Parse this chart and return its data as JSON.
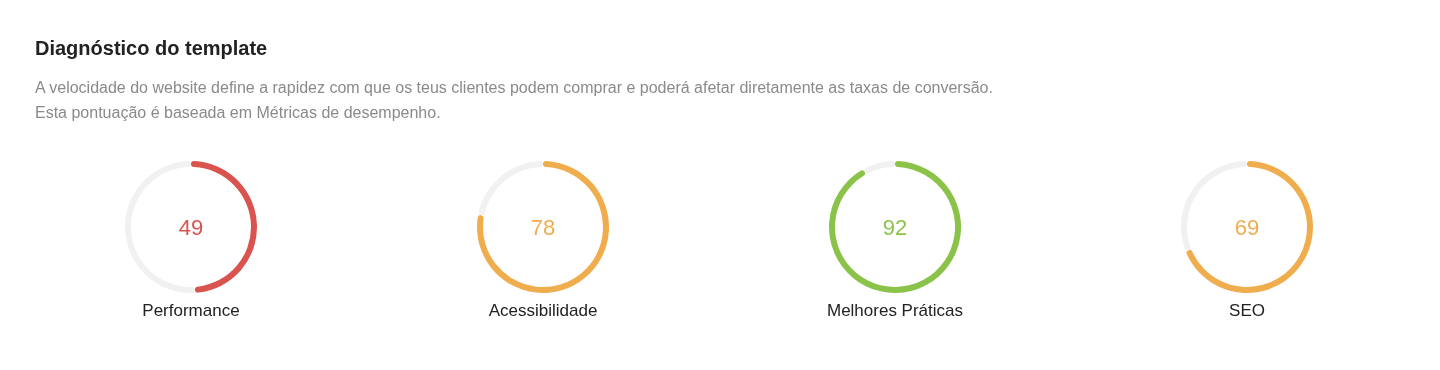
{
  "chart_data": [
    {
      "type": "other",
      "title": "Diagnóstico do template",
      "subtitle": "A velocidade do website define a rapidez com que os teus clientes podem comprar e poderá afetar diretamente as taxas de conversão.",
      "annotations": [
        "Esta pontuação é baseada em Métricas de desempenho."
      ]
    },
    {
      "type": "donut",
      "title": "Performance",
      "categories": [
        null,
        null
      ],
      "values": [
        49,
        51
      ],
      "colors": [
        "#d9534f",
        "#f1f1f1"
      ],
      "value_labels": [
        "49",
        null
      ]
    },
    {
      "type": "donut",
      "title": "Acessibilidade",
      "categories": [
        null,
        null
      ],
      "values": [
        78,
        22
      ],
      "colors": [
        "#f0ad4e",
        "#f1f1f1"
      ],
      "value_labels": [
        "78",
        null
      ]
    },
    {
      "type": "donut",
      "title": "Melhores Práticas",
      "categories": [
        null,
        null
      ],
      "values": [
        92,
        8
      ],
      "colors": [
        "#8bc34a",
        "#f1f1f1"
      ],
      "value_labels": [
        "92",
        null
      ]
    },
    {
      "type": "donut",
      "title": "SEO",
      "categories": [
        null,
        null
      ],
      "values": [
        69,
        31
      ],
      "colors": [
        "#f0ad4e",
        "#f1f1f1"
      ],
      "value_labels": [
        "69",
        null
      ]
    }
  ]
}
